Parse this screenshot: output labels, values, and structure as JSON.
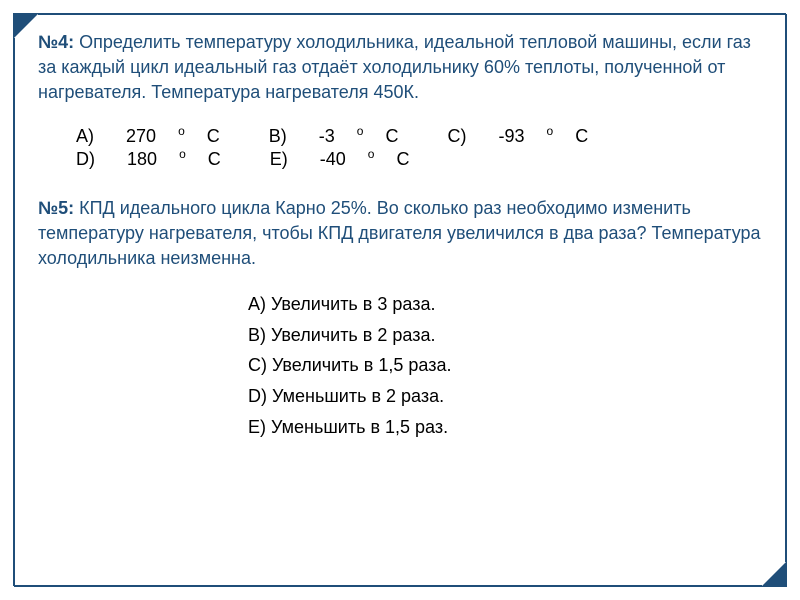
{
  "colors": {
    "primary": "#1f4e79",
    "text": "#000000",
    "background": "#ffffff"
  },
  "problem4": {
    "label": "№4:",
    "text": "Определить температуру холодильника, идеальной тепловой машины, если газ за каждый цикл идеальный газ отдаёт холодильнику 60% теплоты, полученной от нагревателя. Температура нагревателя 450К.",
    "options": {
      "a": {
        "letter": "A)",
        "value": "270",
        "unit": "C"
      },
      "b": {
        "letter": "B)",
        "value": "-3",
        "unit": "C"
      },
      "c": {
        "letter": "C)",
        "value": "-93",
        "unit": "C"
      },
      "d": {
        "letter": "D)",
        "value": "180",
        "unit": "C"
      },
      "e": {
        "letter": "E)",
        "value": "-40",
        "unit": "C"
      }
    }
  },
  "problem5": {
    "label": "№5:",
    "text": "КПД идеального цикла Карно 25%. Во сколько раз необходимо изменить температуру нагревателя, чтобы КПД двигателя увеличился в два раза? Температура холодильника неизменна.",
    "options": {
      "a": "A)  Увеличить в 3 раза.",
      "b": "B)  Увеличить в 2 раза.",
      "c": "C)  Увеличить в 1,5 раза.",
      "d": "D)  Уменьшить в 2 раза.",
      "e": "E)  Уменьшить в 1,5 раз."
    }
  },
  "typography": {
    "problem_fontsize": 18,
    "option_fontsize": 18,
    "sup_fontsize": 12
  }
}
